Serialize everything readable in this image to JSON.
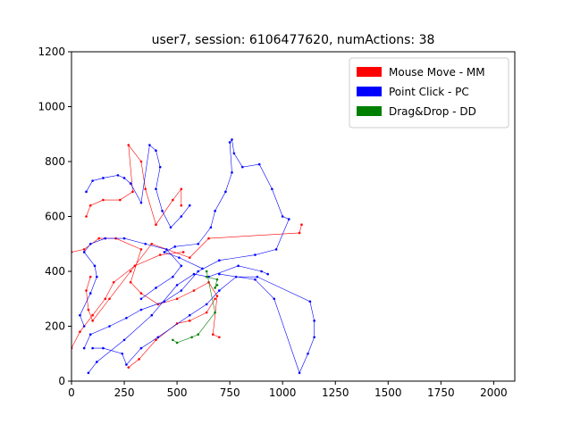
{
  "chart_data": {
    "type": "line",
    "title": "user7, session: 6106477620, numActions: 38",
    "xlim": [
      0,
      2100
    ],
    "ylim": [
      0,
      1200
    ],
    "xticks": [
      0,
      250,
      500,
      750,
      1000,
      1250,
      1500,
      1750,
      2000
    ],
    "yticks": [
      0,
      200,
      400,
      600,
      800,
      1000,
      1200
    ],
    "grid": false,
    "legend": "upper right",
    "series": [
      {
        "name": "Mouse Move - MM",
        "color": "#ff0000",
        "x": [
          0,
          60,
          130,
          210,
          330,
          280,
          330,
          410,
          500,
          580,
          650,
          690,
          670,
          700,
          null,
          70,
          90,
          150,
          230,
          290,
          270,
          330,
          350,
          400,
          480,
          520,
          520,
          null,
          90,
          70,
          80,
          100,
          180,
          280,
          380,
          560,
          650,
          1080,
          1090,
          null,
          270,
          320,
          400,
          500,
          560,
          640,
          680,
          null,
          0,
          40,
          100,
          160,
          200,
          300,
          420,
          530
        ],
        "y": [
          470,
          480,
          520,
          520,
          480,
          360,
          320,
          280,
          300,
          330,
          360,
          310,
          170,
          160,
          null,
          600,
          640,
          660,
          660,
          690,
          860,
          800,
          700,
          570,
          660,
          700,
          640,
          null,
          380,
          330,
          260,
          220,
          300,
          400,
          500,
          450,
          520,
          540,
          570,
          null,
          50,
          80,
          150,
          210,
          220,
          250,
          300,
          null,
          120,
          180,
          240,
          300,
          360,
          420,
          460,
          470
        ]
      },
      {
        "name": "Point Click - PC",
        "color": "#0000ff",
        "x": [
          60,
          40,
          90,
          120,
          110,
          60,
          90,
          160,
          250,
          350,
          450,
          520,
          480,
          400,
          330,
          null,
          70,
          100,
          150,
          220,
          250,
          280,
          330,
          370,
          400,
          420,
          400,
          430,
          470,
          520,
          560,
          null,
          600,
          660,
          680,
          730,
          760,
          750,
          760,
          770,
          810,
          890,
          950,
          1000,
          1030,
          970,
          870,
          700,
          600,
          520,
          440,
          330,
          260,
          180,
          90,
          60,
          null,
          100,
          150,
          240,
          260,
          330,
          410,
          560,
          640,
          700,
          780,
          880,
          1130,
          1150,
          1150,
          1120,
          1080,
          960,
          870,
          700,
          null,
          80,
          120,
          250,
          380,
          500,
          580,
          650,
          790,
          900,
          930,
          null,
          620,
          510,
          440,
          490,
          600
        ],
        "y": [
          200,
          240,
          320,
          380,
          420,
          470,
          500,
          520,
          520,
          500,
          480,
          420,
          380,
          340,
          300,
          null,
          690,
          730,
          740,
          750,
          740,
          720,
          650,
          860,
          840,
          780,
          700,
          620,
          560,
          600,
          640,
          null,
          500,
          560,
          620,
          690,
          760,
          870,
          880,
          830,
          780,
          790,
          700,
          600,
          590,
          480,
          460,
          440,
          400,
          330,
          290,
          260,
          230,
          200,
          170,
          120,
          null,
          120,
          120,
          100,
          60,
          120,
          160,
          240,
          280,
          330,
          380,
          380,
          290,
          220,
          160,
          100,
          30,
          300,
          370,
          390,
          null,
          30,
          70,
          150,
          240,
          350,
          390,
          380,
          420,
          400,
          390,
          null,
          410,
          450,
          470,
          490,
          500
        ]
      },
      {
        "name": "Drag&Drop - DD",
        "color": "#008000",
        "x": [
          480,
          500,
          570,
          600,
          680,
          640,
          null,
          640,
          690,
          680,
          690
        ],
        "y": [
          150,
          140,
          160,
          170,
          250,
          400,
          null,
          380,
          370,
          340,
          350
        ]
      }
    ]
  }
}
